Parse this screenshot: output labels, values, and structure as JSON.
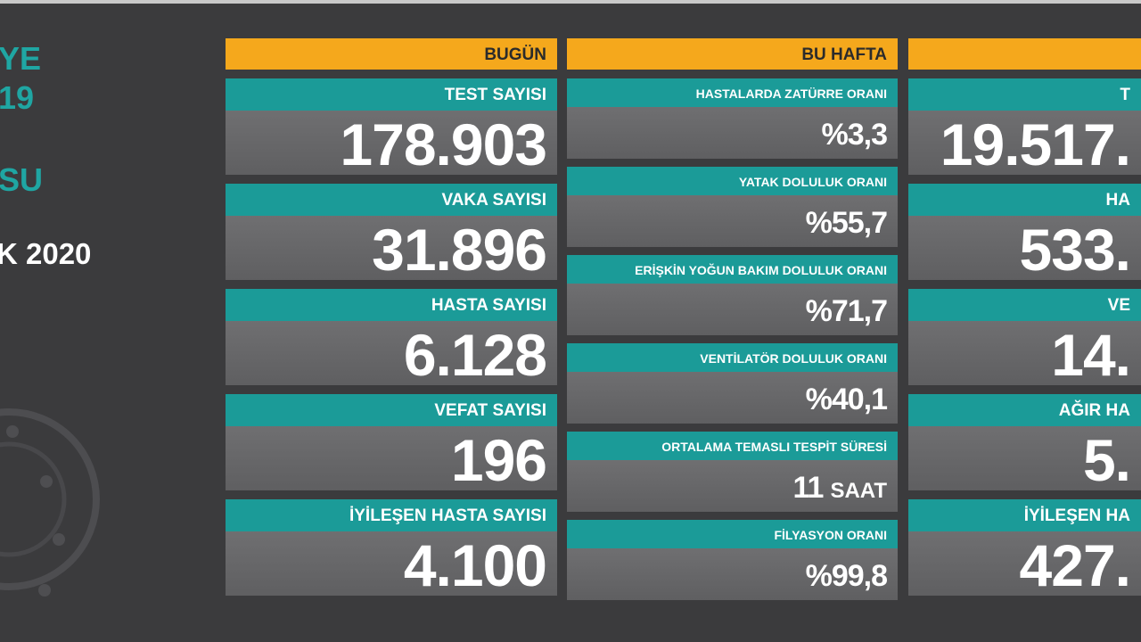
{
  "sidebar": {
    "lines": [
      "YE",
      "19",
      "SU",
      "K 2020"
    ]
  },
  "columns": [
    {
      "header": "BUGÜN",
      "items": [
        {
          "label": "TEST SAYISI",
          "value": "178.903"
        },
        {
          "label": "VAKA SAYISI",
          "value": "31.896"
        },
        {
          "label": "HASTA SAYISI",
          "value": "6.128"
        },
        {
          "label": "VEFAT SAYISI",
          "value": "196"
        },
        {
          "label": "İYİLEŞEN HASTA SAYISI",
          "value": "4.100"
        }
      ]
    },
    {
      "header": "BU HAFTA",
      "items": [
        {
          "label": "HASTALARDA ZATÜRRE ORANI",
          "value": "%3,3"
        },
        {
          "label": "YATAK DOLULUK ORANI",
          "value": "%55,7"
        },
        {
          "label": "ERİŞKİN YOĞUN BAKIM DOLULUK ORANI",
          "value": "%71,7"
        },
        {
          "label": "VENTİLATÖR DOLULUK ORANI",
          "value": "%40,1"
        },
        {
          "label": "ORTALAMA TEMASLI TESPİT SÜRESİ",
          "value": "11",
          "unit": "SAAT"
        },
        {
          "label": "FİLYASYON ORANI",
          "value": "%99,8"
        }
      ]
    },
    {
      "items": [
        {
          "label": "T",
          "value": "19.517."
        },
        {
          "label": "HA",
          "value": "533."
        },
        {
          "label": "VE",
          "value": "14."
        },
        {
          "label": "AĞIR HA",
          "value": "5."
        },
        {
          "label": "İYİLEŞEN HA",
          "value": "427."
        }
      ]
    }
  ]
}
